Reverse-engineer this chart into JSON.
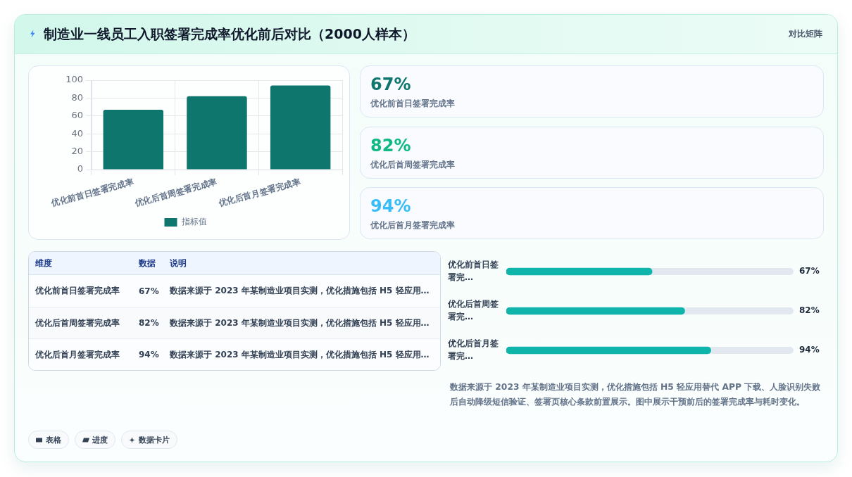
{
  "chart_data": [
    {
      "type": "bar",
      "title": "制造业一线员工入职签署完成率优化前后对比（2000人样本）",
      "categories": [
        "优化前首日签署完成率",
        "优化后首周签署完成率",
        "优化后首月签署完成率"
      ],
      "series": [
        {
          "name": "指标值",
          "color": "#0f766e",
          "values": [
            67,
            82,
            94
          ]
        }
      ],
      "ylim": [
        0,
        100
      ],
      "yticks": [
        0,
        20,
        40,
        60,
        80,
        100
      ],
      "grid": true,
      "legend": "bottom",
      "annotations": [
        "对比矩阵",
        "表格",
        "进度",
        "数据卡片"
      ]
    },
    {
      "type": "other",
      "annotations": [
        "67%",
        "优化前首日签署完成率",
        "82%",
        "优化后首周签署完成率",
        "94%",
        "优化后首月签署完成率"
      ]
    },
    {
      "type": "other",
      "annotations": [
        "维度",
        "数据",
        "说明",
        "优化前首日签署完成率",
        "67%",
        "数据来源于 2023 年某制造业项目实测，优化措施包括 H5 轻应用…",
        "优化后首周签署完成率",
        "82%",
        "数据来源于 2023 年某制造业项目实测，优化措施包括 H5 轻应用…",
        "优化后首月签署完成率",
        "94%",
        "数据来源于 2023 年某制造业项目实测，优化措施包括 H5 轻应用…"
      ]
    },
    {
      "type": "bar",
      "orientation": "horizontal",
      "categories": [
        "优化前首日签署完…",
        "优化后首周签署完…",
        "优化后首月签署完…"
      ],
      "values": [
        67,
        82,
        94
      ],
      "value_labels": [
        "67%",
        "82%",
        "94%"
      ],
      "color": "#0fb5aa",
      "xlim": [
        0,
        132
      ],
      "tick_labels": "y",
      "annotations": [
        "数据来源于 2023 年某制造业项目实测，优化措施包括 H5 轻应用替代 APP 下载、人脸识别失败后自动降级短信验证、签署页核心条款前置展示。图中展示干预前后的签署完成率与耗时变化。"
      ]
    }
  ]
}
